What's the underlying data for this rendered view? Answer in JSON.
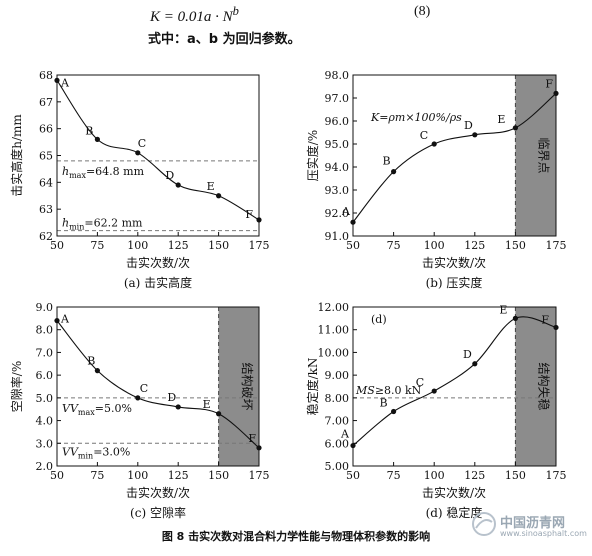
{
  "formula": {
    "text": "K = 0.01a · N",
    "exponent": "b",
    "number": "(8)"
  },
  "note": "式中：a、b 为回归参数。",
  "figure_caption": "图 8    击实次数对混合料力学性能与物理体积参数的影响",
  "watermark": {
    "cn": "中国沥青网",
    "url": "www.sinoasphalt.com",
    "logo": "sinoasphalt-logo"
  },
  "colors": {
    "shade": "#8c8c8c",
    "line": "#111111",
    "dashed": "#777777"
  },
  "chart_data": [
    {
      "type": "line",
      "caption": "(a) 击实高度",
      "xlabel": "击实次数/次",
      "ylabel": "击实高度h/mm",
      "x": [
        50,
        75,
        100,
        125,
        150,
        175
      ],
      "values": [
        67.8,
        65.6,
        65.1,
        63.9,
        63.5,
        62.6
      ],
      "point_labels": [
        "A",
        "B",
        "C",
        "D",
        "E",
        "F"
      ],
      "xlim": [
        50,
        175
      ],
      "xticks": [
        50,
        75,
        100,
        125,
        150,
        175
      ],
      "ylim": [
        62,
        68
      ],
      "yticks": [
        62,
        63,
        64,
        65,
        66,
        67,
        68
      ],
      "hlines": [
        {
          "y": 64.8,
          "label_main": "h",
          "label_sub": "max",
          "label_rest": "=64.8 mm"
        },
        {
          "y": 62.2,
          "label_main": "h",
          "label_sub": "min",
          "label_rest": "=62.2 mm"
        }
      ]
    },
    {
      "type": "line",
      "caption": "(b) 压实度",
      "xlabel": "击实次数/次",
      "ylabel": "压实度/%",
      "x": [
        50,
        75,
        100,
        125,
        150,
        175
      ],
      "values": [
        91.6,
        93.8,
        95.0,
        95.4,
        95.7,
        97.2
      ],
      "point_labels": [
        "A",
        "B",
        "C",
        "D",
        "E",
        "F"
      ],
      "xlim": [
        50,
        175
      ],
      "xticks": [
        50,
        75,
        100,
        125,
        150,
        175
      ],
      "ylim": [
        91,
        98
      ],
      "yticks": [
        91,
        92,
        93,
        94,
        95,
        96,
        97,
        98
      ],
      "yformat": 1,
      "shade": {
        "from": 150,
        "to": 175,
        "label": "临界点"
      },
      "annotation": "K=ρm×100%/ρs"
    },
    {
      "type": "line",
      "caption": "(c) 空隙率",
      "xlabel": "击实次数/次",
      "ylabel": "空隙率/%",
      "x": [
        50,
        75,
        100,
        125,
        150,
        175
      ],
      "values": [
        8.4,
        6.2,
        5.0,
        4.6,
        4.3,
        2.8
      ],
      "point_labels": [
        "A",
        "B",
        "C",
        "D",
        "E",
        "F"
      ],
      "xlim": [
        50,
        175
      ],
      "xticks": [
        50,
        75,
        100,
        125,
        150,
        175
      ],
      "ylim": [
        2,
        9
      ],
      "yticks": [
        2,
        3,
        4,
        5,
        6,
        7,
        8,
        9
      ],
      "yformat": 1,
      "shade": {
        "from": 150,
        "to": 175,
        "label": "结构破坏"
      },
      "hlines": [
        {
          "y": 5.0,
          "label_main": "VV",
          "label_sub": "max",
          "label_rest": "=5.0%"
        },
        {
          "y": 3.0,
          "label_main": "VV",
          "label_sub": "min",
          "label_rest": "=3.0%"
        }
      ]
    },
    {
      "type": "line",
      "caption": "(d) 稳定度",
      "xlabel": "击实次数/次",
      "ylabel": "稳定度/kN",
      "x": [
        50,
        75,
        100,
        125,
        150,
        175
      ],
      "values": [
        5.9,
        7.4,
        8.3,
        9.5,
        11.5,
        11.1
      ],
      "point_labels": [
        "A",
        "B",
        "C",
        "D",
        "E",
        "F"
      ],
      "xlim": [
        50,
        175
      ],
      "xticks": [
        50,
        75,
        100,
        125,
        150,
        175
      ],
      "ylim": [
        5,
        12
      ],
      "yticks": [
        5,
        6,
        7,
        8,
        9,
        10,
        11,
        12
      ],
      "yformat": 2,
      "shade": {
        "from": 150,
        "to": 175,
        "label": "结构失稳"
      },
      "hlines": [
        {
          "y": 8.0,
          "label_main": "MS",
          "label_sub": "",
          "label_rest": "≥8.0 kN"
        }
      ],
      "panel_tag": "(d)"
    }
  ]
}
